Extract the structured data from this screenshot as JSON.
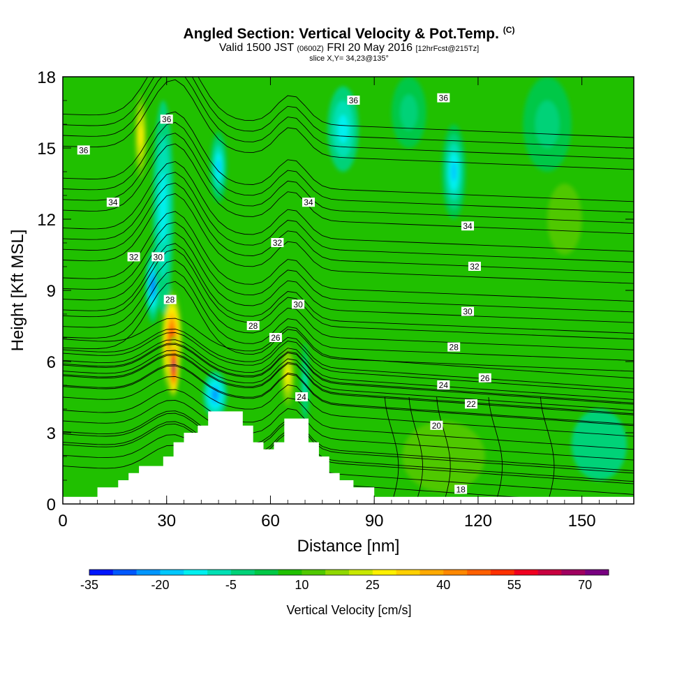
{
  "title": {
    "main": "Angled Section: Vertical Velocity & Pot.Temp.",
    "main_suffix": "(C)",
    "valid_a": "Valid 1500 JST",
    "valid_b": "(0600Z)",
    "valid_c": "FRI 20 May 2016",
    "valid_d": "[12hrFcst@215Tz]",
    "slice": "slice X,Y= 34,23@135°"
  },
  "chart_data": {
    "type": "heatmap",
    "xlabel": "Distance [nm]",
    "ylabel": "Height [Kft MSL]",
    "xlim": [
      0,
      165
    ],
    "ylim": [
      0,
      18
    ],
    "xticks": [
      0,
      30,
      60,
      90,
      120,
      150
    ],
    "yticks": [
      0,
      3,
      6,
      9,
      12,
      15,
      18
    ],
    "background_value": 5,
    "colorbar": {
      "label": "Vertical Velocity [cm/s]",
      "min": -35,
      "step": 5,
      "tick_labels": [
        -35,
        -20,
        -5,
        10,
        25,
        40,
        55,
        70
      ],
      "colors": [
        "#0016ff",
        "#0058ff",
        "#0096ff",
        "#00c8ff",
        "#00f0f0",
        "#00e0b4",
        "#00d278",
        "#00c846",
        "#20c000",
        "#50c800",
        "#90d800",
        "#c8e800",
        "#fff000",
        "#ffd000",
        "#ffaa00",
        "#ff8800",
        "#ff6000",
        "#ff3000",
        "#f00020",
        "#c80040",
        "#a00060",
        "#780080"
      ]
    },
    "wind_blobs": [
      {
        "x": 31.5,
        "y": 6.8,
        "value": 58,
        "rx": 3.2,
        "ry": 2.4
      },
      {
        "x": 32.0,
        "y": 5.8,
        "value": 72,
        "rx": 1.5,
        "ry": 1.3
      },
      {
        "x": 22.5,
        "y": 15.5,
        "value": 25,
        "rx": 1.8,
        "ry": 1.8
      },
      {
        "x": 26.0,
        "y": 9.2,
        "value": -30,
        "rx": 2.2,
        "ry": 1.6
      },
      {
        "x": 29.0,
        "y": 12.5,
        "value": -12,
        "rx": 3.0,
        "ry": 4.5
      },
      {
        "x": 45.0,
        "y": 14.2,
        "value": -18,
        "rx": 2.5,
        "ry": 1.5
      },
      {
        "x": 44.0,
        "y": 4.6,
        "value": -22,
        "rx": 3.5,
        "ry": 1.0
      },
      {
        "x": 65.0,
        "y": 5.4,
        "value": 26,
        "rx": 2.0,
        "ry": 1.3
      },
      {
        "x": 70.0,
        "y": 5.0,
        "value": -8,
        "rx": 1.3,
        "ry": 1.8
      },
      {
        "x": 81.0,
        "y": 15.8,
        "value": -12,
        "rx": 4.5,
        "ry": 1.8
      },
      {
        "x": 113.0,
        "y": 14.0,
        "value": -18,
        "rx": 3.5,
        "ry": 2.0
      },
      {
        "x": 100.0,
        "y": 16.5,
        "value": -3,
        "rx": 5.0,
        "ry": 1.5
      },
      {
        "x": 140.0,
        "y": 16.0,
        "value": -3,
        "rx": 7.0,
        "ry": 2.0
      },
      {
        "x": 145.0,
        "y": 12.0,
        "value": 12,
        "rx": 5.0,
        "ry": 1.5
      },
      {
        "x": 110.0,
        "y": 2.0,
        "value": 11,
        "rx": 12.0,
        "ry": 1.5
      },
      {
        "x": 155.0,
        "y": 2.5,
        "value": -2,
        "rx": 8.0,
        "ry": 1.5
      }
    ],
    "isentropes": [
      {
        "value": 18,
        "label_at": [
          115,
          0.6
        ]
      },
      {
        "value": 20,
        "label_at": [
          108,
          3.3
        ]
      },
      {
        "value": 22,
        "label_at": [
          118,
          4.2
        ]
      },
      {
        "value": 24,
        "label_at": [
          69,
          4.5
        ]
      },
      {
        "value": 26,
        "label_at": [
          122,
          5.3
        ]
      },
      {
        "value": 28,
        "label_at": [
          31,
          8.6
        ]
      },
      {
        "value": 30,
        "label_at": [
          27.5,
          10.4
        ]
      },
      {
        "value": 32,
        "label_at": [
          20.5,
          10.4
        ]
      },
      {
        "value": 34,
        "label_at": [
          14.5,
          12.7
        ]
      },
      {
        "value": 36,
        "label_at": [
          6,
          14.9
        ]
      }
    ],
    "extra_labels": [
      {
        "text": "36",
        "x": 30,
        "y": 16.2
      },
      {
        "text": "36",
        "x": 84,
        "y": 17.0
      },
      {
        "text": "36",
        "x": 110,
        "y": 17.1
      },
      {
        "text": "34",
        "x": 71,
        "y": 12.7
      },
      {
        "text": "34",
        "x": 117,
        "y": 11.7
      },
      {
        "text": "32",
        "x": 62,
        "y": 11.0
      },
      {
        "text": "32",
        "x": 119,
        "y": 10.0
      },
      {
        "text": "30",
        "x": 68,
        "y": 8.4
      },
      {
        "text": "30",
        "x": 117,
        "y": 8.1
      },
      {
        "text": "28",
        "x": 55,
        "y": 7.5
      },
      {
        "text": "28",
        "x": 113,
        "y": 6.6
      },
      {
        "text": "26",
        "x": 61.5,
        "y": 7.0
      },
      {
        "text": "24",
        "x": 110,
        "y": 5.0
      },
      {
        "text": "22",
        "x": 118,
        "y": 4.2
      }
    ],
    "terrain": [
      [
        10,
        0
      ],
      [
        10,
        0.7
      ],
      [
        16,
        0.7
      ],
      [
        16,
        1.0
      ],
      [
        19,
        1.0
      ],
      [
        19,
        1.3
      ],
      [
        22,
        1.3
      ],
      [
        22,
        1.6
      ],
      [
        29,
        1.6
      ],
      [
        29,
        2.0
      ],
      [
        32,
        2.0
      ],
      [
        32,
        2.6
      ],
      [
        35,
        2.6
      ],
      [
        35,
        3.0
      ],
      [
        39,
        3.0
      ],
      [
        39,
        3.3
      ],
      [
        42,
        3.3
      ],
      [
        42,
        3.9
      ],
      [
        52,
        3.9
      ],
      [
        52,
        3.3
      ],
      [
        55,
        3.3
      ],
      [
        55,
        2.6
      ],
      [
        58,
        2.6
      ],
      [
        58,
        2.3
      ],
      [
        61,
        2.3
      ],
      [
        61,
        2.6
      ],
      [
        64,
        2.6
      ],
      [
        64,
        3.6
      ],
      [
        71,
        3.6
      ],
      [
        71,
        2.6
      ],
      [
        74,
        2.6
      ],
      [
        74,
        2.0
      ],
      [
        77,
        2.0
      ],
      [
        77,
        1.3
      ],
      [
        80,
        1.3
      ],
      [
        80,
        1.0
      ],
      [
        84,
        1.0
      ],
      [
        84,
        0.7
      ],
      [
        90,
        0.7
      ],
      [
        90,
        0
      ]
    ]
  }
}
